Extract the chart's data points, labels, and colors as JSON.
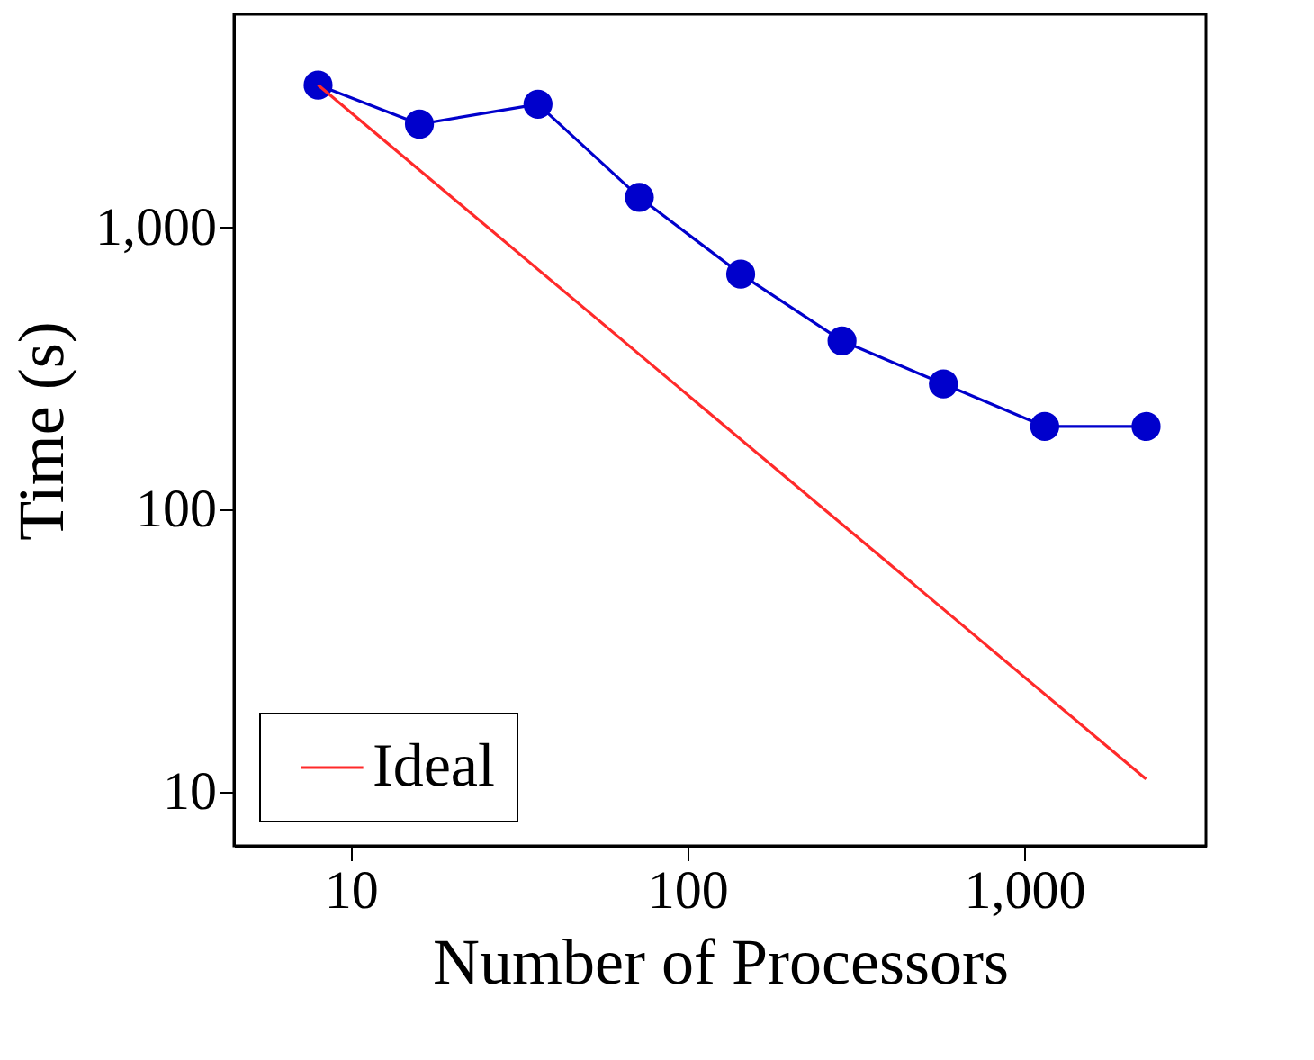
{
  "chart_data": {
    "type": "line",
    "xlabel": "Number of Processors",
    "ylabel": "Time (s)",
    "log": "xy",
    "xlim": [
      4.5,
      3470
    ],
    "ylim": [
      6.44,
      5680
    ],
    "xticks": [
      {
        "value": 10,
        "label": "10"
      },
      {
        "value": 100,
        "label": "100"
      },
      {
        "value": 1000,
        "label": "1,000"
      }
    ],
    "yticks": [
      {
        "value": 10,
        "label": "10"
      },
      {
        "value": 100,
        "label": "100"
      },
      {
        "value": 1000,
        "label": "1,000"
      }
    ],
    "grid": false,
    "legend": "bottom left",
    "series": [
      {
        "color": "#0000cc",
        "marker": "circle",
        "x": [
          8,
          16,
          36,
          72,
          144,
          288,
          576,
          1152,
          2304
        ],
        "values": [
          3190,
          2320,
          2730,
          1277,
          683,
          396,
          279,
          197,
          197
        ]
      },
      {
        "name": "Ideal",
        "color": "#ff2a2a",
        "marker": "none",
        "x": [
          8,
          2304
        ],
        "values": [
          3190,
          11.1
        ]
      }
    ]
  }
}
